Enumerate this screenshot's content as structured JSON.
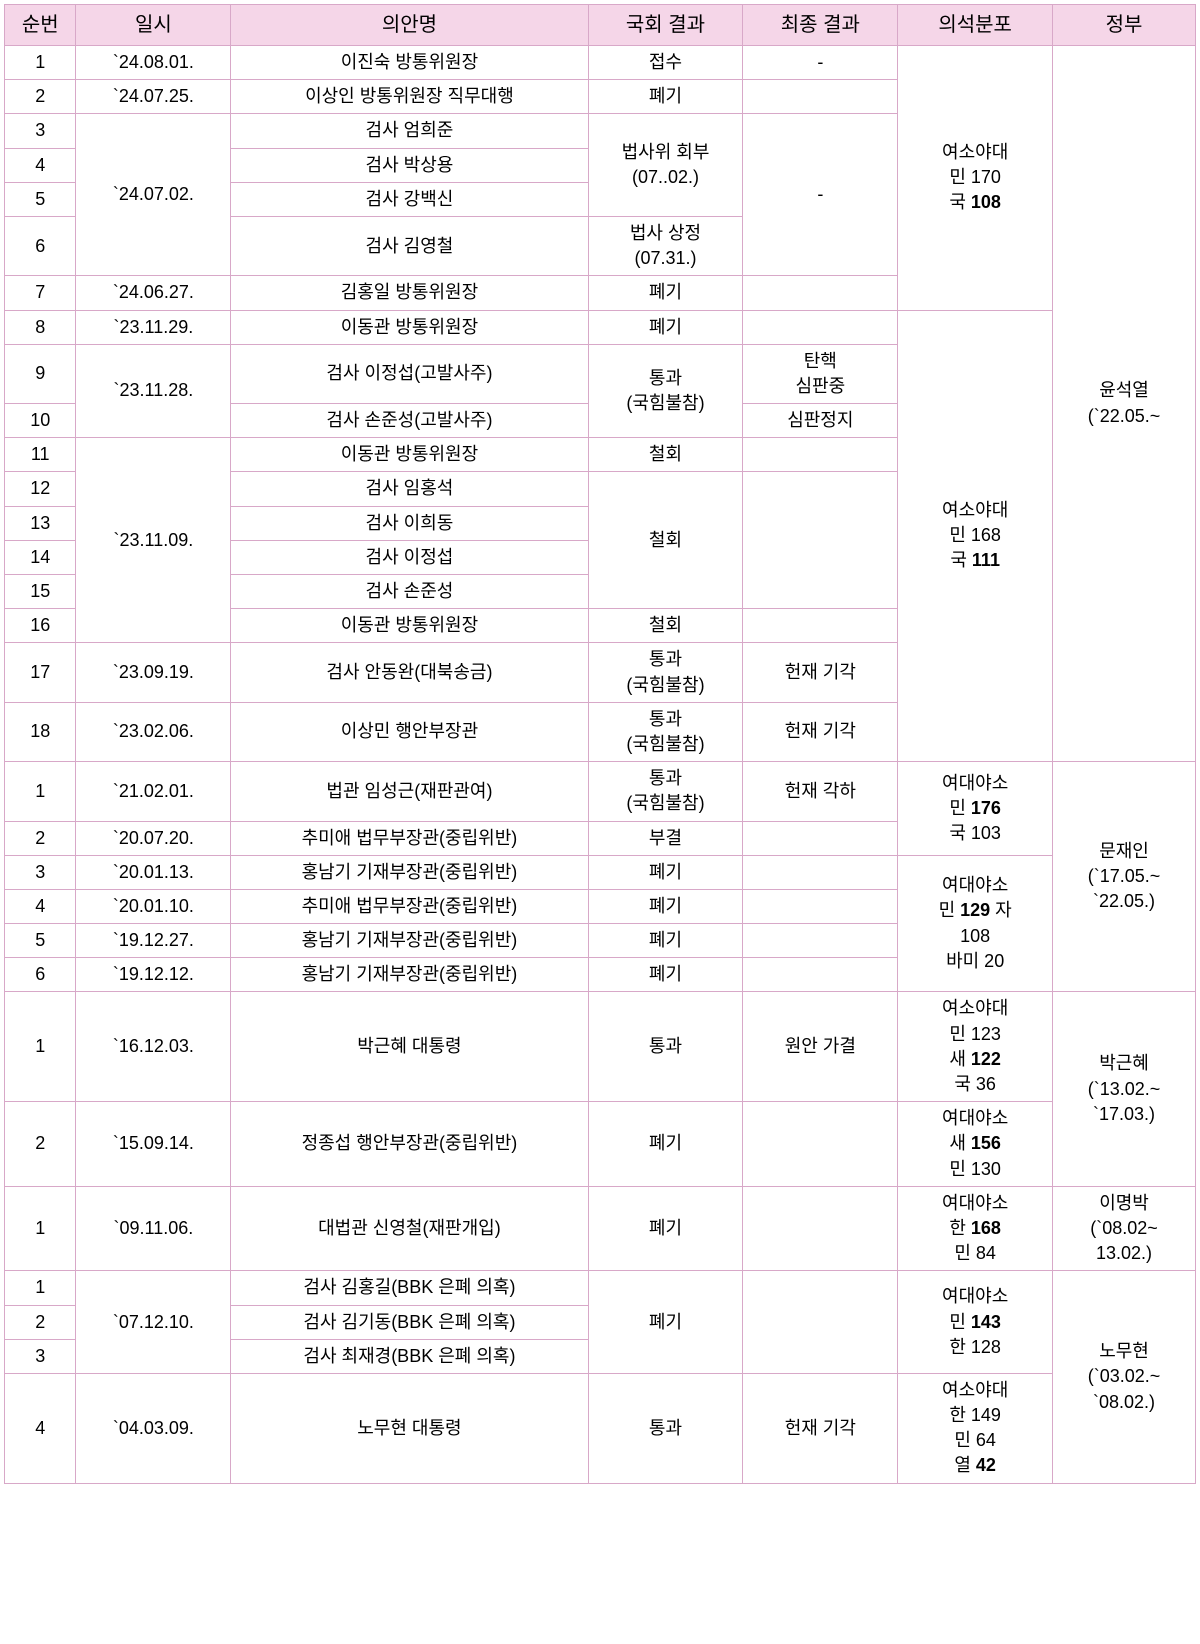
{
  "headers": {
    "seq": "순번",
    "date": "일시",
    "bill": "의안명",
    "result1": "국회 결과",
    "result2": "최종 결과",
    "seats": "의석분포",
    "gov": "정부"
  },
  "rows": [
    {
      "seq": "1",
      "date": "`24.08.01.",
      "bill": "이진숙 방통위원장",
      "r1": "접수",
      "r2": "-"
    },
    {
      "seq": "2",
      "date": "`24.07.25.",
      "bill": "이상인 방통위원장 직무대행",
      "r1": "폐기",
      "r2": ""
    },
    {
      "seq": "3",
      "date": "",
      "bill": "검사 엄희준",
      "r1": "",
      "r2": ""
    },
    {
      "seq": "4",
      "date": "",
      "bill": "검사 박상용",
      "r1": "",
      "r2": ""
    },
    {
      "seq": "5",
      "date": "`24.07.02.",
      "bill": "검사 강백신",
      "r1": "",
      "r2": ""
    },
    {
      "seq": "6",
      "date": "",
      "bill": "검사 김영철",
      "r1": "법사 상정\n(07.31.)",
      "r2": ""
    },
    {
      "seq": "7",
      "date": "`24.06.27.",
      "bill": "김홍일 방통위원장",
      "r1": "폐기",
      "r2": ""
    },
    {
      "seq": "8",
      "date": "`23.11.29.",
      "bill": "이동관 방통위원장",
      "r1": "폐기",
      "r2": ""
    },
    {
      "seq": "9",
      "date": "",
      "bill": "검사 이정섭(고발사주)",
      "r1": "",
      "r2": "탄핵\n심판중"
    },
    {
      "seq": "10",
      "date": "",
      "bill": "검사 손준성(고발사주)",
      "r1": "",
      "r2": "심판정지"
    },
    {
      "seq": "11",
      "date": "",
      "bill": "이동관 방통위원장",
      "r1": "철회",
      "r2": ""
    },
    {
      "seq": "12",
      "date": "",
      "bill": "검사 임홍석",
      "r1": "",
      "r2": ""
    },
    {
      "seq": "13",
      "date": "",
      "bill": "검사 이희동",
      "r1": "",
      "r2": ""
    },
    {
      "seq": "14",
      "date": "`23.11.09.",
      "bill": "검사 이정섭",
      "r1": "",
      "r2": ""
    },
    {
      "seq": "15",
      "date": "",
      "bill": "검사 손준성",
      "r1": "",
      "r2": ""
    },
    {
      "seq": "16",
      "date": "",
      "bill": "이동관 방통위원장",
      "r1": "철회",
      "r2": ""
    },
    {
      "seq": "17",
      "date": "`23.09.19.",
      "bill": "검사 안동완(대북송금)",
      "r1": "통과\n(국힘불참)",
      "r2": "헌재 기각"
    },
    {
      "seq": "18",
      "date": "`23.02.06.",
      "bill": "이상민 행안부장관",
      "r1": "통과\n(국힘불참)",
      "r2": "헌재 기각"
    },
    {
      "seq": "1",
      "date": "`21.02.01.",
      "bill": "법관 임성근(재판관여)",
      "r1": "통과\n(국힘불참)",
      "r2": "헌재 각하"
    },
    {
      "seq": "2",
      "date": "`20.07.20.",
      "bill": "추미애 법무부장관(중립위반)",
      "r1": "부결",
      "r2": ""
    },
    {
      "seq": "3",
      "date": "`20.01.13.",
      "bill": "홍남기 기재부장관(중립위반)",
      "r1": "폐기",
      "r2": ""
    },
    {
      "seq": "4",
      "date": "`20.01.10.",
      "bill": "추미애 법무부장관(중립위반)",
      "r1": "폐기",
      "r2": ""
    },
    {
      "seq": "5",
      "date": "`19.12.27.",
      "bill": "홍남기 기재부장관(중립위반)",
      "r1": "폐기",
      "r2": ""
    },
    {
      "seq": "6",
      "date": "`19.12.12.",
      "bill": "홍남기 기재부장관(중립위반)",
      "r1": "폐기",
      "r2": ""
    },
    {
      "seq": "1",
      "date": "`16.12.03.",
      "bill": "박근혜 대통령",
      "r1": "통과",
      "r2": "원안 가결"
    },
    {
      "seq": "2",
      "date": "`15.09.14.",
      "bill": "정종섭 행안부장관(중립위반)",
      "r1": "폐기",
      "r2": ""
    },
    {
      "seq": "1",
      "date": "`09.11.06.",
      "bill": "대법관 신영철(재판개입)",
      "r1": "폐기",
      "r2": ""
    },
    {
      "seq": "1",
      "date": "",
      "bill": "검사 김홍길(BBK 은폐 의혹)",
      "r1": "",
      "r2": ""
    },
    {
      "seq": "2",
      "date": "`07.12.10.",
      "bill": "검사 김기동(BBK 은폐 의혹)",
      "r1": "",
      "r2": ""
    },
    {
      "seq": "3",
      "date": "",
      "bill": "검사 최재경(BBK 은폐 의혹)",
      "r1": "",
      "r2": ""
    },
    {
      "seq": "4",
      "date": "`04.03.09.",
      "bill": "노무현 대통령",
      "r1": "통과",
      "r2": "헌재 기각"
    }
  ],
  "merged": {
    "date_3_6": "`24.07.02.",
    "r1_3_5": "법사위 회부\n(07..02.)",
    "r2_3_6": "-",
    "date_9_10": "`23.11.28.",
    "r1_9_10": "통과\n(국힘불참)",
    "date_11_16": "`23.11.09.",
    "r1_12_15": "철회",
    "date_27_29": "`07.12.10.",
    "r1_27_29": "폐기"
  },
  "seats": {
    "yoon1_html": "여소야대<br>민 170<br>국 <strong>108</strong>",
    "yoon2_html": "여소야대<br>민 168<br>국 <strong>111</strong>",
    "moon1_html": "여대야소<br>민 <strong>176</strong><br>국 103",
    "moon2_html": "여대야소<br>민 <strong>129</strong> 자<br>108<br>바미 20",
    "park1_html": "여소야대<br>민 123<br>새 <strong>122</strong><br>국 36",
    "park2_html": "여대야소<br>새 <strong>156</strong><br>민 130",
    "lee_html": "여대야소<br>한 <strong>168</strong><br>민 84",
    "roh1_html": "여대야소<br>민 <strong>143</strong><br>한 128",
    "roh2_html": "여소야대<br>한 149<br>민 64<br>열 <strong>42</strong>"
  },
  "gov": {
    "yoon": "윤석열\n(`22.05.~",
    "moon": "문재인\n(`17.05.~\n`22.05.)",
    "park": "박근혜\n(`13.02.~\n`17.03.)",
    "lee": "이명박\n(`08.02~\n13.02.)",
    "roh": "노무현\n(`03.02.~\n`08.02.)"
  }
}
